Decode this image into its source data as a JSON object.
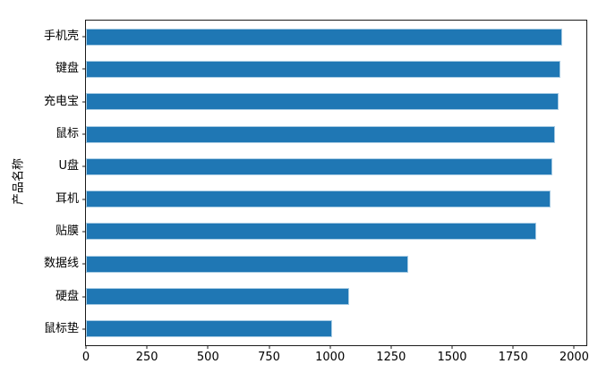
{
  "figure": {
    "background_color": "#ffffff",
    "spine_color": "#1a1a1a",
    "tick_label_color": "#000000"
  },
  "chart_data": {
    "type": "bar",
    "orientation": "horizontal",
    "title": "",
    "xlabel": "",
    "ylabel": "产品名称",
    "category_order": "top_to_bottom",
    "categories": [
      "手机壳",
      "键盘",
      "充电宝",
      "鼠标",
      "U盘",
      "耳机",
      "贴膜",
      "数据线",
      "硬盘",
      "鼠标垫"
    ],
    "values": [
      1950,
      1945,
      1935,
      1920,
      1910,
      1905,
      1845,
      1320,
      1080,
      1010
    ],
    "xlim": [
      0,
      2050
    ],
    "x_ticks": [
      0,
      250,
      500,
      750,
      1000,
      1250,
      1500,
      1750,
      2000
    ],
    "bar_color": "#1f77b4",
    "bar_edge_color": "#a8cce4",
    "grid": false,
    "legend": "none"
  }
}
